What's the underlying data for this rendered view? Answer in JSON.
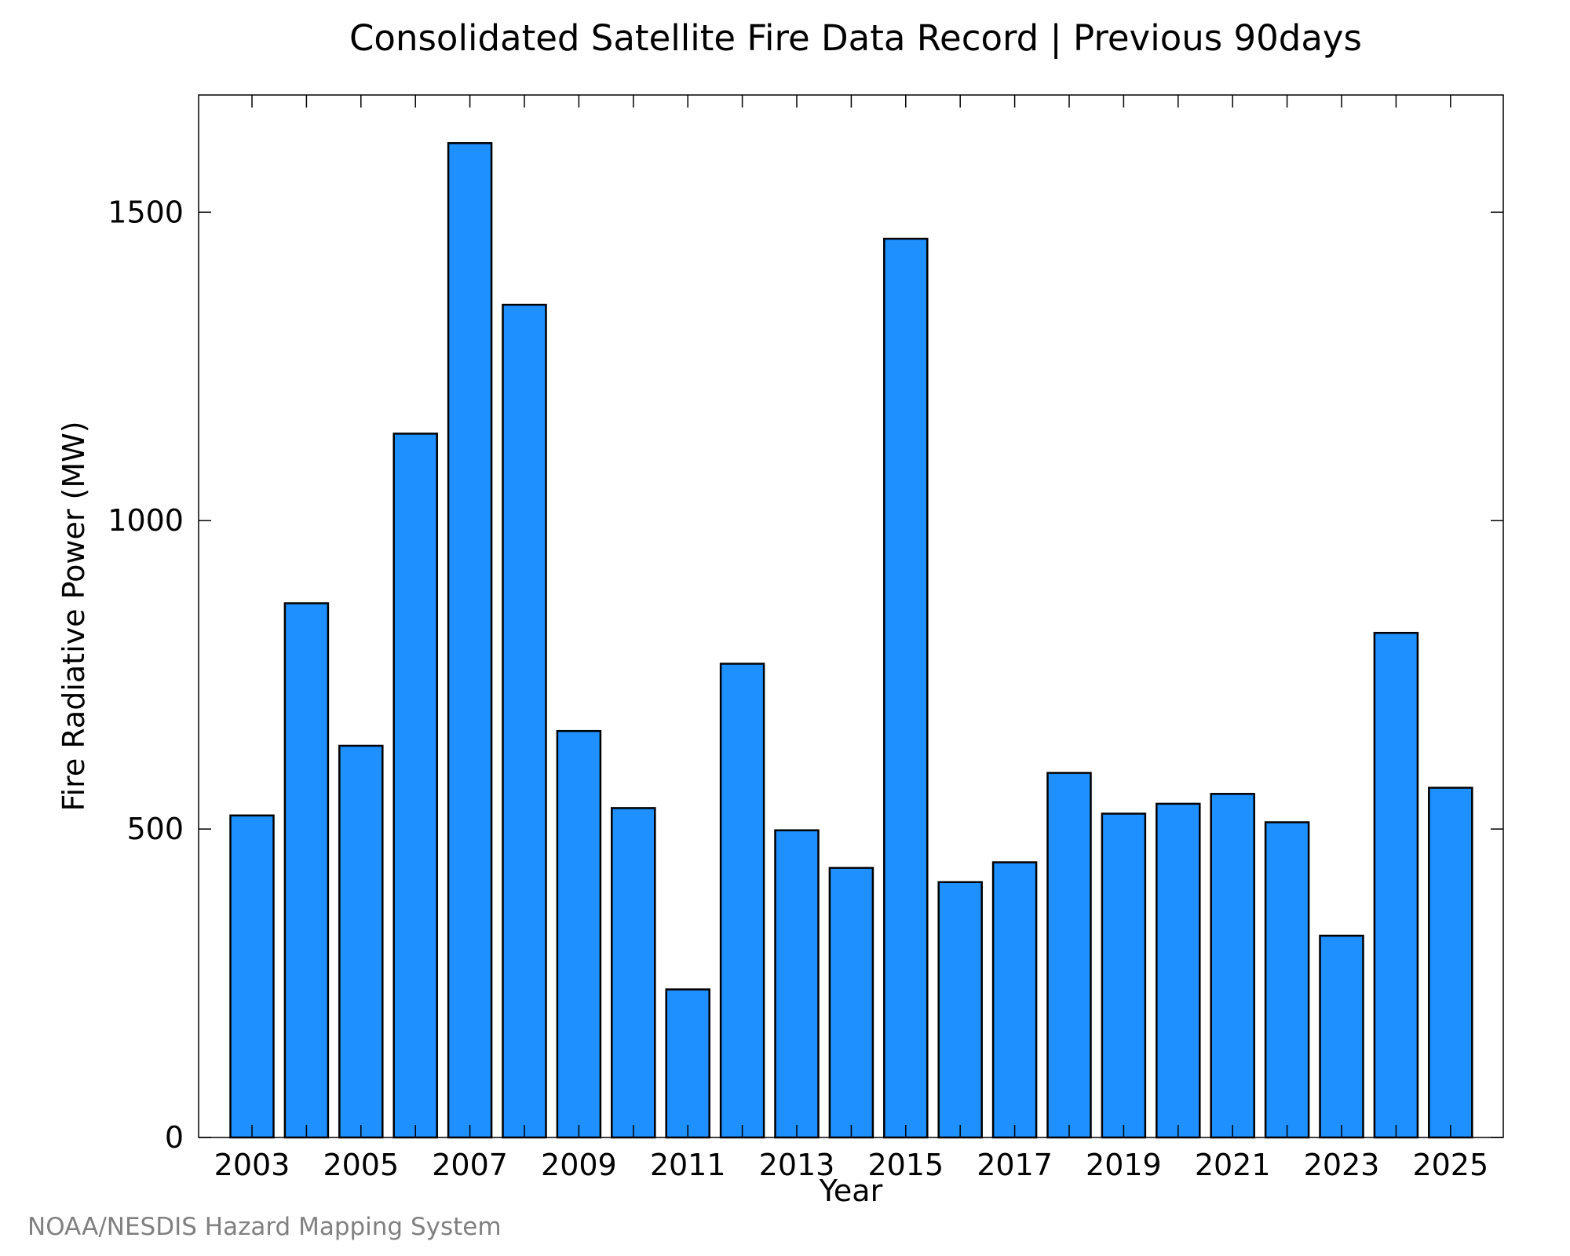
{
  "chart_data": {
    "type": "bar",
    "title": "Consolidated Satellite Fire Data Record | Previous 90days",
    "xlabel": "Year",
    "ylabel": "Fire Radiative Power (MW)",
    "credit": "NOAA/NESDIS Hazard Mapping System",
    "categories": [
      "2003",
      "2004",
      "2005",
      "2006",
      "2007",
      "2008",
      "2009",
      "2010",
      "2011",
      "2012",
      "2013",
      "2014",
      "2015",
      "2016",
      "2017",
      "2018",
      "2019",
      "2020",
      "2021",
      "2022",
      "2023",
      "2024",
      "2025"
    ],
    "values": [
      522,
      866,
      635,
      1141,
      1612,
      1350,
      659,
      534,
      240,
      768,
      498,
      437,
      1457,
      414,
      446,
      591,
      525,
      541,
      557,
      511,
      327,
      818,
      567
    ],
    "x_tick_labels": [
      "2003",
      "2005",
      "2007",
      "2009",
      "2011",
      "2013",
      "2015",
      "2017",
      "2019",
      "2021",
      "2023",
      "2025"
    ],
    "y_ticks": [
      0,
      500,
      1000,
      1500
    ],
    "y_tick_labels": [
      "0",
      "500",
      "1000",
      "1500"
    ],
    "ylim": [
      0,
      1690
    ],
    "bar_color": "#1e90ff",
    "bar_edge_color": "#000000",
    "grid": false,
    "legend": false
  }
}
